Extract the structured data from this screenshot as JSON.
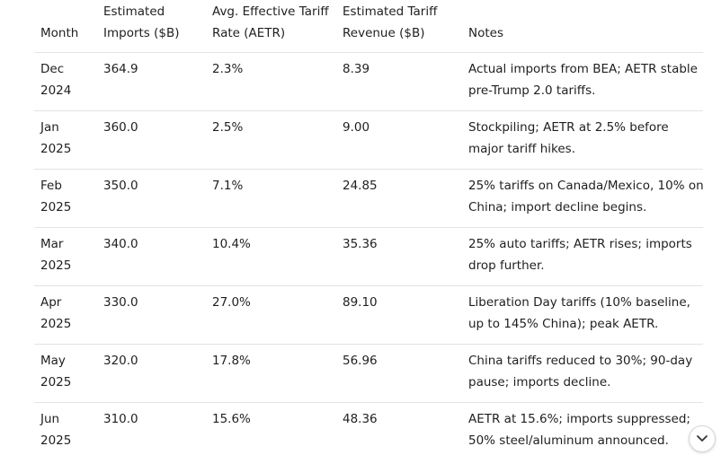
{
  "table": {
    "header": [
      "Month",
      "Estimated Imports ($B)",
      "Avg. Effective Tariff Rate (AETR)",
      "Estimated Tariff Revenue ($B)",
      "Notes"
    ],
    "rows": [
      [
        "Dec 2024",
        "364.9",
        "2.3%",
        "8.39",
        "Actual imports from BEA; AETR stable pre-Trump 2.0 tariffs."
      ],
      [
        "Jan 2025",
        "360.0",
        "2.5%",
        "9.00",
        "Stockpiling; AETR at 2.5% before major tariff hikes."
      ],
      [
        "Feb 2025",
        "350.0",
        "7.1%",
        "24.85",
        "25% tariffs on Canada/Mexico, 10% on China; import decline begins."
      ],
      [
        "Mar 2025",
        "340.0",
        "10.4%",
        "35.36",
        "25% auto tariffs; AETR rises; imports drop further."
      ],
      [
        "Apr 2025",
        "330.0",
        "27.0%",
        "89.10",
        "Liberation Day tariffs (10% baseline, up to 145% China); peak AETR."
      ],
      [
        "May 2025",
        "320.0",
        "17.8%",
        "56.96",
        "China tariffs reduced to 30%; 90-day pause; imports decline."
      ],
      [
        "Jun 2025",
        "310.0",
        "15.6%",
        "48.36",
        "AETR at 15.6%; imports suppressed; 50% steel/aluminum announced."
      ]
    ]
  }
}
